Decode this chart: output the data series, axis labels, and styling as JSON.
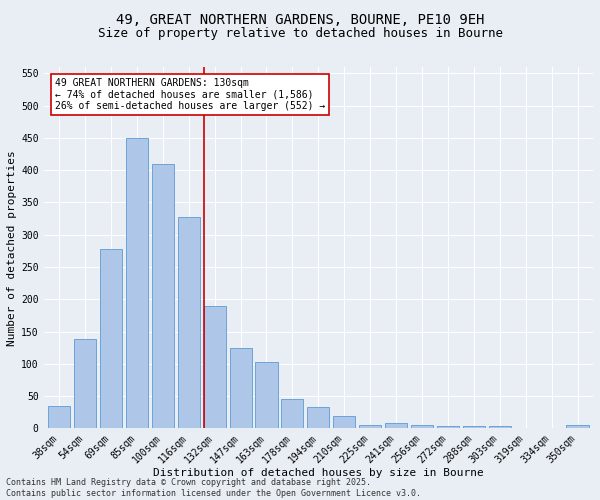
{
  "title_line1": "49, GREAT NORTHERN GARDENS, BOURNE, PE10 9EH",
  "title_line2": "Size of property relative to detached houses in Bourne",
  "xlabel": "Distribution of detached houses by size in Bourne",
  "ylabel": "Number of detached properties",
  "categories": [
    "38sqm",
    "54sqm",
    "69sqm",
    "85sqm",
    "100sqm",
    "116sqm",
    "132sqm",
    "147sqm",
    "163sqm",
    "178sqm",
    "194sqm",
    "210sqm",
    "225sqm",
    "241sqm",
    "256sqm",
    "272sqm",
    "288sqm",
    "303sqm",
    "319sqm",
    "334sqm",
    "350sqm"
  ],
  "values": [
    35,
    138,
    278,
    450,
    410,
    328,
    190,
    125,
    103,
    45,
    33,
    20,
    6,
    8,
    5,
    3,
    4,
    4,
    1,
    1,
    5
  ],
  "bar_color": "#aec6e8",
  "bar_edge_color": "#5b9bd5",
  "highlight_index": 6,
  "highlight_line_color": "#cc0000",
  "annotation_text": "49 GREAT NORTHERN GARDENS: 130sqm\n← 74% of detached houses are smaller (1,586)\n26% of semi-detached houses are larger (552) →",
  "annotation_box_color": "#ffffff",
  "annotation_box_edge": "#cc0000",
  "ylim": [
    0,
    560
  ],
  "yticks": [
    0,
    50,
    100,
    150,
    200,
    250,
    300,
    350,
    400,
    450,
    500,
    550
  ],
  "background_color": "#e8eef4",
  "grid_color": "#ffffff",
  "footer_line1": "Contains HM Land Registry data © Crown copyright and database right 2025.",
  "footer_line2": "Contains public sector information licensed under the Open Government Licence v3.0.",
  "title_fontsize": 10,
  "subtitle_fontsize": 9,
  "axis_label_fontsize": 8,
  "tick_fontsize": 7,
  "annotation_fontsize": 7,
  "footer_fontsize": 6
}
